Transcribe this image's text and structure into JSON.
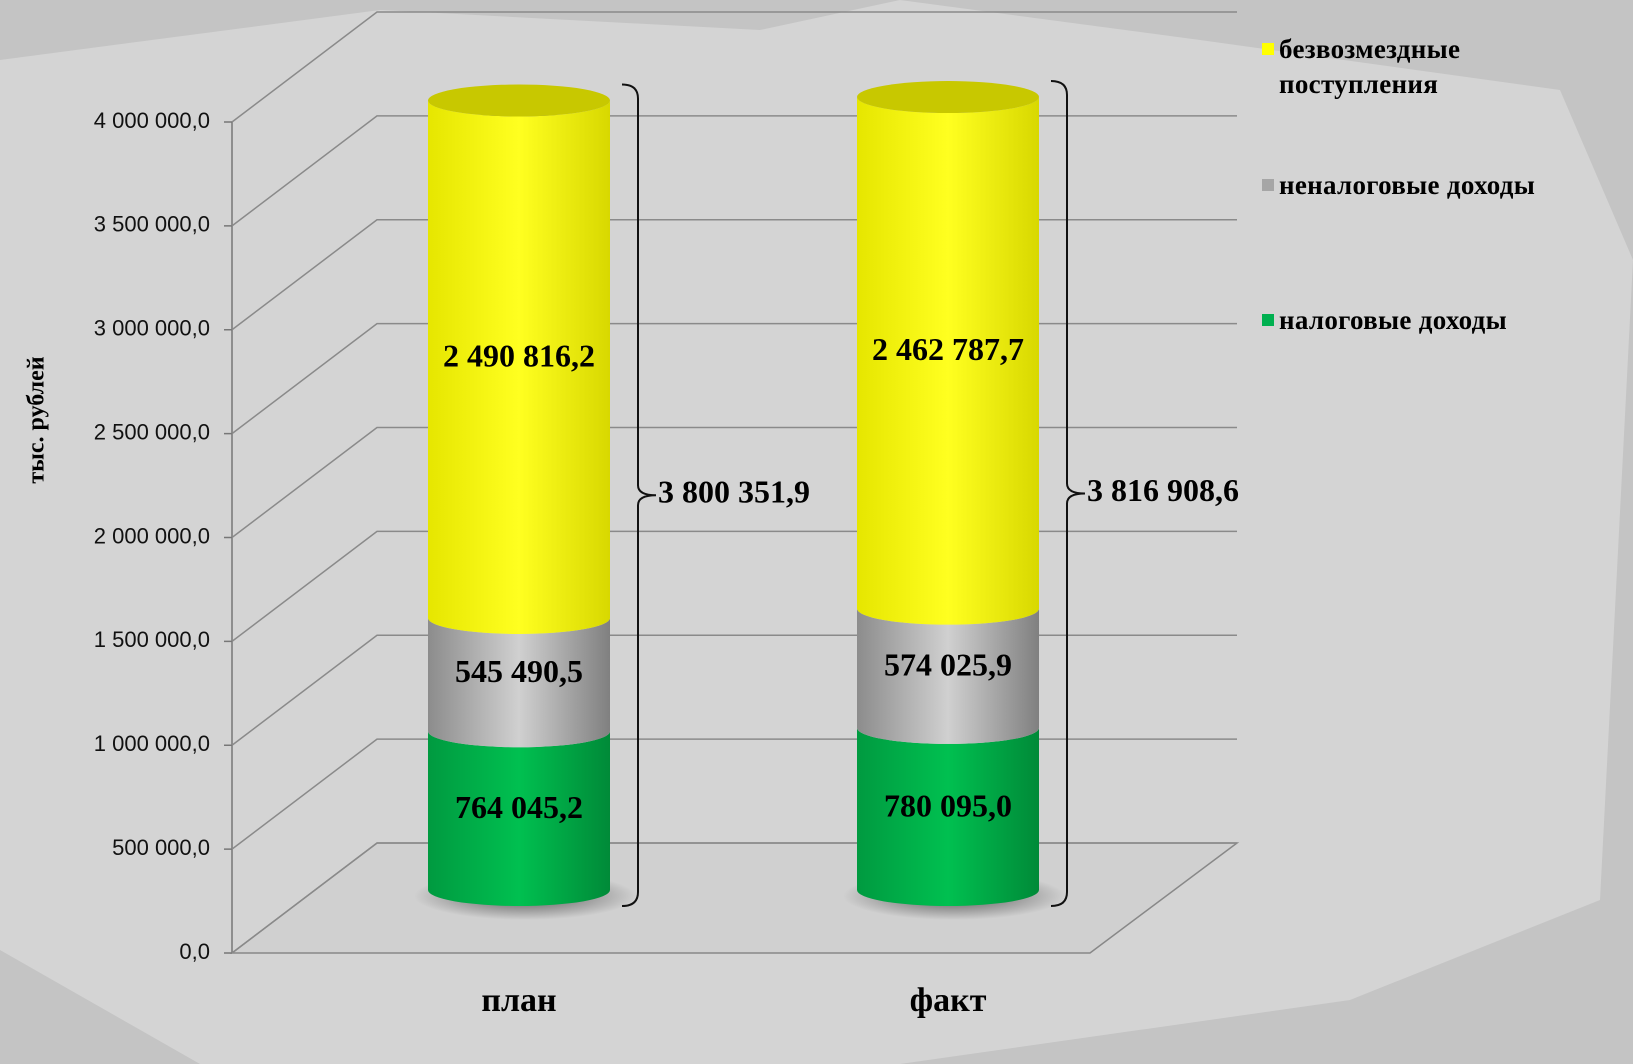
{
  "chart_data": {
    "type": "bar3d_stacked_cylinder",
    "y_label": "тыс. рублей",
    "categories": [
      "план",
      "факт"
    ],
    "series": [
      {
        "name": "налоговые доходы",
        "color": "#00b050",
        "values": [
          764045.2,
          780095.0
        ],
        "value_labels": [
          "764 045,2",
          "780 095,0"
        ]
      },
      {
        "name": "неналоговые доходы",
        "color": "#a6a6a6",
        "values": [
          545490.5,
          574025.9
        ],
        "value_labels": [
          "545 490,5",
          "574 025,9"
        ]
      },
      {
        "name": "безвозмездные поступления",
        "color": "#ffff00",
        "values": [
          2490816.2,
          2462787.7
        ],
        "value_labels": [
          "2 490 816,2",
          "2 462 787,7"
        ]
      }
    ],
    "totals": [
      3800351.9,
      3816908.6
    ],
    "total_labels": [
      "3 800 351,9",
      "3 816 908,6"
    ],
    "ylim": [
      0,
      4000000
    ],
    "yticks": [
      {
        "value": 0,
        "label": "0,0"
      },
      {
        "value": 500000,
        "label": "500 000,0"
      },
      {
        "value": 1000000,
        "label": "1 000 000,0"
      },
      {
        "value": 1500000,
        "label": "1 500 000,0"
      },
      {
        "value": 2000000,
        "label": "2 000 000,0"
      },
      {
        "value": 2500000,
        "label": "2 500 000,0"
      },
      {
        "value": 3000000,
        "label": "3 000 000,0"
      },
      {
        "value": 3500000,
        "label": "3 500 000,0"
      },
      {
        "value": 4000000,
        "label": "4 000 000,0"
      }
    ],
    "grid": true,
    "legend": "right"
  }
}
